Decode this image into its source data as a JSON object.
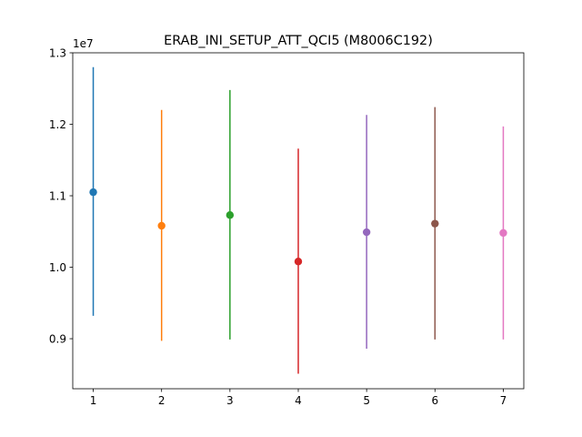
{
  "chart_data": {
    "type": "errorbar",
    "title": "ERAB_INI_SETUP_ATT_QCI5 (M8006C192)",
    "xlabel": "",
    "ylabel": "",
    "y_offset_label": "1e7",
    "xlim": [
      0.7,
      7.3
    ],
    "ylim": [
      8.3,
      13.0
    ],
    "x_ticks": [
      1,
      2,
      3,
      4,
      5,
      6,
      7
    ],
    "y_ticks": [
      0.9,
      1.0,
      1.1,
      1.2,
      1.3
    ],
    "y_scale": 10000000,
    "grid": false,
    "points": [
      {
        "x": 1,
        "y": 11.05,
        "err_low": 9.32,
        "err_high": 12.8,
        "color": "#1f77b4"
      },
      {
        "x": 2,
        "y": 10.58,
        "err_low": 8.97,
        "err_high": 12.2,
        "color": "#ff7f0e"
      },
      {
        "x": 3,
        "y": 10.73,
        "err_low": 8.99,
        "err_high": 12.48,
        "color": "#2ca02c"
      },
      {
        "x": 4,
        "y": 10.08,
        "err_low": 8.51,
        "err_high": 11.66,
        "color": "#d62728"
      },
      {
        "x": 5,
        "y": 10.49,
        "err_low": 8.86,
        "err_high": 12.13,
        "color": "#9467bd"
      },
      {
        "x": 6,
        "y": 10.61,
        "err_low": 8.99,
        "err_high": 12.24,
        "color": "#8c564b"
      },
      {
        "x": 7,
        "y": 10.48,
        "err_low": 8.99,
        "err_high": 11.97,
        "color": "#e377c2"
      }
    ]
  }
}
